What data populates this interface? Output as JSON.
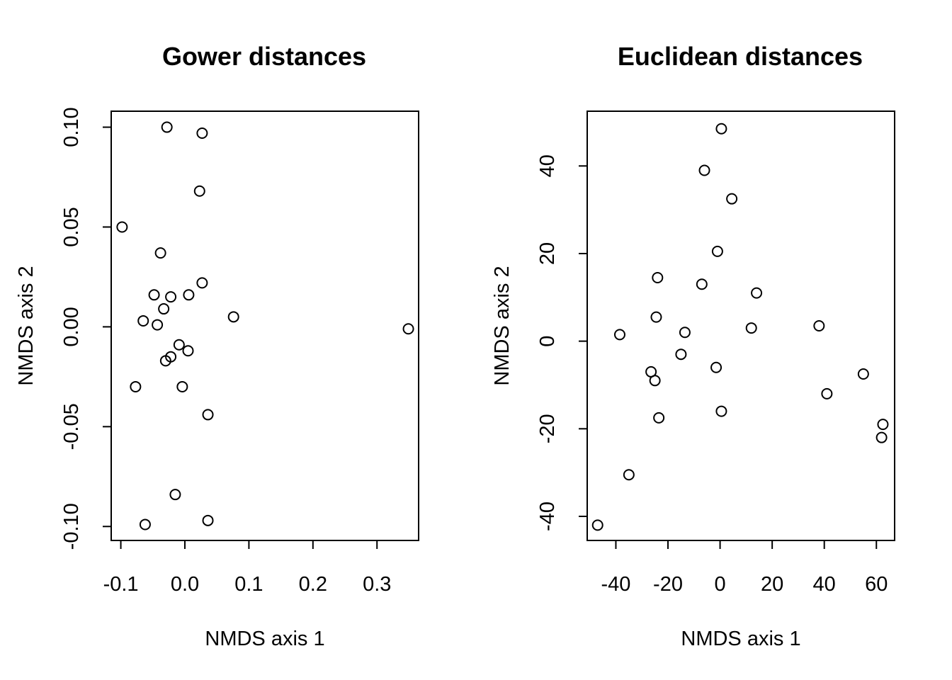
{
  "chart_data": [
    {
      "type": "scatter",
      "title": "Gower distances",
      "xlabel": "NMDS axis 1",
      "ylabel": "NMDS axis 2",
      "xlim": [
        -0.115,
        0.365
      ],
      "ylim": [
        -0.107,
        0.108
      ],
      "xticks": [
        -0.1,
        0.0,
        0.1,
        0.2,
        0.3
      ],
      "xtick_labels": [
        "-0.1",
        "0.0",
        "0.1",
        "0.2",
        "0.3"
      ],
      "yticks": [
        -0.1,
        -0.05,
        0.0,
        0.05,
        0.1
      ],
      "ytick_labels": [
        "-0.10",
        "-0.05",
        "0.00",
        "0.05",
        "0.10"
      ],
      "points": [
        {
          "x": -0.028,
          "y": 0.1
        },
        {
          "x": 0.027,
          "y": 0.097
        },
        {
          "x": 0.023,
          "y": 0.068
        },
        {
          "x": -0.098,
          "y": 0.05
        },
        {
          "x": -0.038,
          "y": 0.037
        },
        {
          "x": 0.027,
          "y": 0.022
        },
        {
          "x": -0.048,
          "y": 0.016
        },
        {
          "x": -0.022,
          "y": 0.015
        },
        {
          "x": 0.006,
          "y": 0.016
        },
        {
          "x": -0.033,
          "y": 0.009
        },
        {
          "x": 0.076,
          "y": 0.005
        },
        {
          "x": -0.065,
          "y": 0.003
        },
        {
          "x": -0.043,
          "y": 0.001
        },
        {
          "x": 0.349,
          "y": -0.001
        },
        {
          "x": -0.009,
          "y": -0.009
        },
        {
          "x": 0.005,
          "y": -0.012
        },
        {
          "x": -0.022,
          "y": -0.015
        },
        {
          "x": -0.03,
          "y": -0.017
        },
        {
          "x": -0.077,
          "y": -0.03
        },
        {
          "x": -0.004,
          "y": -0.03
        },
        {
          "x": 0.036,
          "y": -0.044
        },
        {
          "x": -0.015,
          "y": -0.084
        },
        {
          "x": 0.036,
          "y": -0.097
        },
        {
          "x": -0.062,
          "y": -0.099
        }
      ]
    },
    {
      "type": "scatter",
      "title": "Euclidean distances",
      "xlabel": "NMDS axis 1",
      "ylabel": "NMDS axis 2",
      "xlim": [
        -51,
        67
      ],
      "ylim": [
        -45.5,
        52.5
      ],
      "xticks": [
        -40,
        -20,
        0,
        20,
        40,
        60
      ],
      "xtick_labels": [
        "-40",
        "-20",
        "0",
        "20",
        "40",
        "60"
      ],
      "yticks": [
        -40,
        -20,
        0,
        20,
        40
      ],
      "ytick_labels": [
        "-40",
        "-20",
        "0",
        "20",
        "40"
      ],
      "points": [
        {
          "x": 0.5,
          "y": 48.5
        },
        {
          "x": -6.0,
          "y": 39.0
        },
        {
          "x": 4.5,
          "y": 32.5
        },
        {
          "x": -1.0,
          "y": 20.5
        },
        {
          "x": -24.0,
          "y": 14.5
        },
        {
          "x": -7.0,
          "y": 13.0
        },
        {
          "x": 14.0,
          "y": 11.0
        },
        {
          "x": -24.5,
          "y": 5.5
        },
        {
          "x": 12.0,
          "y": 3.0
        },
        {
          "x": 38.0,
          "y": 3.5
        },
        {
          "x": -38.5,
          "y": 1.5
        },
        {
          "x": -13.5,
          "y": 2.0
        },
        {
          "x": -15.0,
          "y": -3.0
        },
        {
          "x": -1.5,
          "y": -6.0
        },
        {
          "x": -26.5,
          "y": -7.0
        },
        {
          "x": -25.0,
          "y": -9.0
        },
        {
          "x": 55.0,
          "y": -7.5
        },
        {
          "x": 41.0,
          "y": -12.0
        },
        {
          "x": 0.5,
          "y": -16.0
        },
        {
          "x": -23.5,
          "y": -17.5
        },
        {
          "x": 62.5,
          "y": -19.0
        },
        {
          "x": 62.0,
          "y": -22.0
        },
        {
          "x": -35.0,
          "y": -30.5
        },
        {
          "x": -47.0,
          "y": -42.0
        }
      ]
    }
  ]
}
